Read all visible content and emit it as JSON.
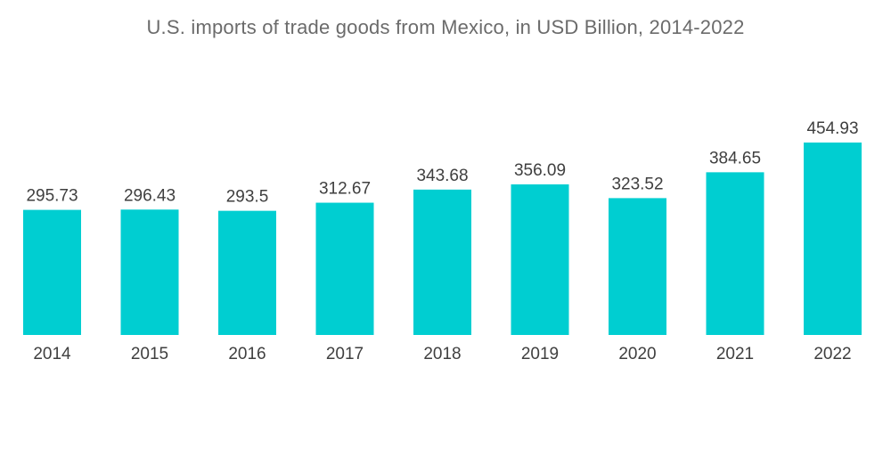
{
  "chart_data": {
    "type": "bar",
    "title": "U.S. imports of trade goods from Mexico, in USD Billion, 2014-2022",
    "categories": [
      "2014",
      "2015",
      "2016",
      "2017",
      "2018",
      "2019",
      "2020",
      "2021",
      "2022"
    ],
    "values": [
      295.73,
      296.43,
      293.5,
      312.67,
      343.68,
      356.09,
      323.52,
      384.65,
      454.93
    ],
    "value_labels": [
      "295.73",
      "296.43",
      "293.5",
      "312.67",
      "343.68",
      "356.09",
      "323.52",
      "384.65",
      "454.93"
    ],
    "xlabel": "",
    "ylabel": "",
    "ylim": [
      0,
      454.93
    ],
    "grid": false,
    "legend": "none",
    "bar_color": "#00CED1"
  }
}
